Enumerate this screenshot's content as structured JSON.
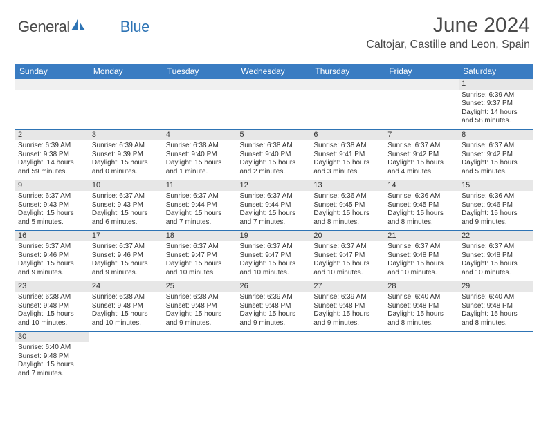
{
  "brand": {
    "name_part1": "General",
    "name_part2": "Blue"
  },
  "title": "June 2024",
  "location": "Caltojar, Castille and Leon, Spain",
  "colors": {
    "header_bg": "#3a7cc2",
    "header_text": "#ffffff",
    "cell_border": "#2e74b5",
    "daynum_bg": "#e7e7e7",
    "text": "#333333",
    "brand_blue": "#2e74b5"
  },
  "typography": {
    "title_fontsize": 30,
    "location_fontsize": 16,
    "dayheader_fontsize": 12,
    "daynum_fontsize": 11,
    "body_fontsize": 10
  },
  "day_headers": [
    "Sunday",
    "Monday",
    "Tuesday",
    "Wednesday",
    "Thursday",
    "Friday",
    "Saturday"
  ],
  "weeks": [
    [
      null,
      null,
      null,
      null,
      null,
      null,
      {
        "n": "1",
        "sunrise": "Sunrise: 6:39 AM",
        "sunset": "Sunset: 9:37 PM",
        "daylight": "Daylight: 14 hours and 58 minutes."
      }
    ],
    [
      {
        "n": "2",
        "sunrise": "Sunrise: 6:39 AM",
        "sunset": "Sunset: 9:38 PM",
        "daylight": "Daylight: 14 hours and 59 minutes."
      },
      {
        "n": "3",
        "sunrise": "Sunrise: 6:39 AM",
        "sunset": "Sunset: 9:39 PM",
        "daylight": "Daylight: 15 hours and 0 minutes."
      },
      {
        "n": "4",
        "sunrise": "Sunrise: 6:38 AM",
        "sunset": "Sunset: 9:40 PM",
        "daylight": "Daylight: 15 hours and 1 minute."
      },
      {
        "n": "5",
        "sunrise": "Sunrise: 6:38 AM",
        "sunset": "Sunset: 9:40 PM",
        "daylight": "Daylight: 15 hours and 2 minutes."
      },
      {
        "n": "6",
        "sunrise": "Sunrise: 6:38 AM",
        "sunset": "Sunset: 9:41 PM",
        "daylight": "Daylight: 15 hours and 3 minutes."
      },
      {
        "n": "7",
        "sunrise": "Sunrise: 6:37 AM",
        "sunset": "Sunset: 9:42 PM",
        "daylight": "Daylight: 15 hours and 4 minutes."
      },
      {
        "n": "8",
        "sunrise": "Sunrise: 6:37 AM",
        "sunset": "Sunset: 9:42 PM",
        "daylight": "Daylight: 15 hours and 5 minutes."
      }
    ],
    [
      {
        "n": "9",
        "sunrise": "Sunrise: 6:37 AM",
        "sunset": "Sunset: 9:43 PM",
        "daylight": "Daylight: 15 hours and 5 minutes."
      },
      {
        "n": "10",
        "sunrise": "Sunrise: 6:37 AM",
        "sunset": "Sunset: 9:43 PM",
        "daylight": "Daylight: 15 hours and 6 minutes."
      },
      {
        "n": "11",
        "sunrise": "Sunrise: 6:37 AM",
        "sunset": "Sunset: 9:44 PM",
        "daylight": "Daylight: 15 hours and 7 minutes."
      },
      {
        "n": "12",
        "sunrise": "Sunrise: 6:37 AM",
        "sunset": "Sunset: 9:44 PM",
        "daylight": "Daylight: 15 hours and 7 minutes."
      },
      {
        "n": "13",
        "sunrise": "Sunrise: 6:36 AM",
        "sunset": "Sunset: 9:45 PM",
        "daylight": "Daylight: 15 hours and 8 minutes."
      },
      {
        "n": "14",
        "sunrise": "Sunrise: 6:36 AM",
        "sunset": "Sunset: 9:45 PM",
        "daylight": "Daylight: 15 hours and 8 minutes."
      },
      {
        "n": "15",
        "sunrise": "Sunrise: 6:36 AM",
        "sunset": "Sunset: 9:46 PM",
        "daylight": "Daylight: 15 hours and 9 minutes."
      }
    ],
    [
      {
        "n": "16",
        "sunrise": "Sunrise: 6:37 AM",
        "sunset": "Sunset: 9:46 PM",
        "daylight": "Daylight: 15 hours and 9 minutes."
      },
      {
        "n": "17",
        "sunrise": "Sunrise: 6:37 AM",
        "sunset": "Sunset: 9:46 PM",
        "daylight": "Daylight: 15 hours and 9 minutes."
      },
      {
        "n": "18",
        "sunrise": "Sunrise: 6:37 AM",
        "sunset": "Sunset: 9:47 PM",
        "daylight": "Daylight: 15 hours and 10 minutes."
      },
      {
        "n": "19",
        "sunrise": "Sunrise: 6:37 AM",
        "sunset": "Sunset: 9:47 PM",
        "daylight": "Daylight: 15 hours and 10 minutes."
      },
      {
        "n": "20",
        "sunrise": "Sunrise: 6:37 AM",
        "sunset": "Sunset: 9:47 PM",
        "daylight": "Daylight: 15 hours and 10 minutes."
      },
      {
        "n": "21",
        "sunrise": "Sunrise: 6:37 AM",
        "sunset": "Sunset: 9:48 PM",
        "daylight": "Daylight: 15 hours and 10 minutes."
      },
      {
        "n": "22",
        "sunrise": "Sunrise: 6:37 AM",
        "sunset": "Sunset: 9:48 PM",
        "daylight": "Daylight: 15 hours and 10 minutes."
      }
    ],
    [
      {
        "n": "23",
        "sunrise": "Sunrise: 6:38 AM",
        "sunset": "Sunset: 9:48 PM",
        "daylight": "Daylight: 15 hours and 10 minutes."
      },
      {
        "n": "24",
        "sunrise": "Sunrise: 6:38 AM",
        "sunset": "Sunset: 9:48 PM",
        "daylight": "Daylight: 15 hours and 10 minutes."
      },
      {
        "n": "25",
        "sunrise": "Sunrise: 6:38 AM",
        "sunset": "Sunset: 9:48 PM",
        "daylight": "Daylight: 15 hours and 9 minutes."
      },
      {
        "n": "26",
        "sunrise": "Sunrise: 6:39 AM",
        "sunset": "Sunset: 9:48 PM",
        "daylight": "Daylight: 15 hours and 9 minutes."
      },
      {
        "n": "27",
        "sunrise": "Sunrise: 6:39 AM",
        "sunset": "Sunset: 9:48 PM",
        "daylight": "Daylight: 15 hours and 9 minutes."
      },
      {
        "n": "28",
        "sunrise": "Sunrise: 6:40 AM",
        "sunset": "Sunset: 9:48 PM",
        "daylight": "Daylight: 15 hours and 8 minutes."
      },
      {
        "n": "29",
        "sunrise": "Sunrise: 6:40 AM",
        "sunset": "Sunset: 9:48 PM",
        "daylight": "Daylight: 15 hours and 8 minutes."
      }
    ],
    [
      {
        "n": "30",
        "sunrise": "Sunrise: 6:40 AM",
        "sunset": "Sunset: 9:48 PM",
        "daylight": "Daylight: 15 hours and 7 minutes."
      },
      null,
      null,
      null,
      null,
      null,
      null
    ]
  ]
}
